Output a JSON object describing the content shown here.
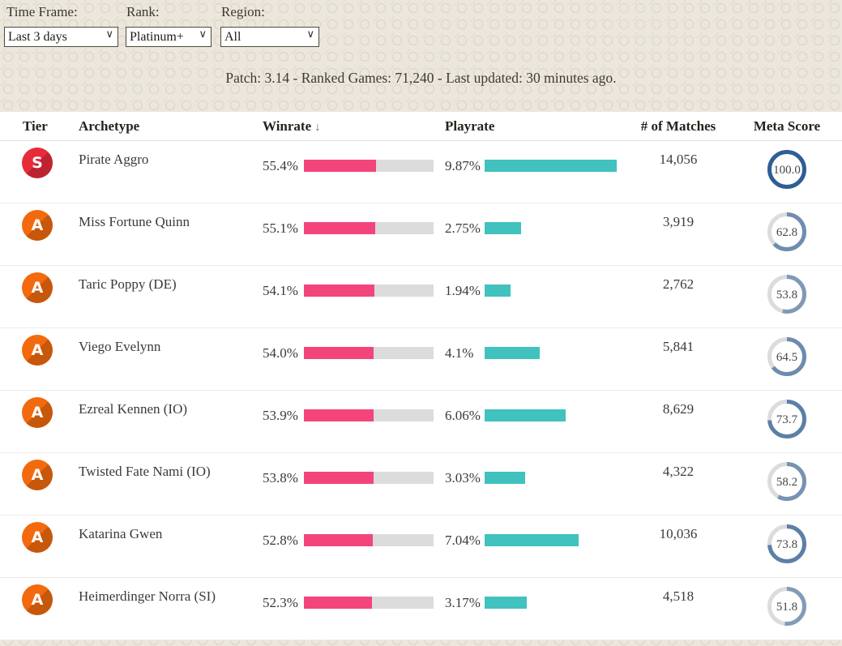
{
  "filters": [
    {
      "label": "Time Frame:",
      "value": "Last 3 days"
    },
    {
      "label": "Rank:",
      "value": "Platinum+"
    },
    {
      "label": "Region:",
      "value": "All"
    }
  ],
  "chevron_icon": "∨",
  "status_line": "Patch: 3.14 - Ranked Games: 71,240 - Last updated: 30 minutes ago.",
  "table": {
    "columns": [
      "Tier",
      "Archetype",
      "Winrate",
      "Playrate",
      "# of Matches",
      "Meta Score"
    ],
    "sort_icon": "↓",
    "rows": [
      {
        "tier": "S",
        "archetype": "Pirate Aggro",
        "winrate_label": "55.4%",
        "winrate": 55.4,
        "playrate_label": "9.87%",
        "playrate": 9.87,
        "matches": "14,056",
        "meta_label": "100.0",
        "meta": 100.0
      },
      {
        "tier": "A",
        "archetype": "Miss Fortune Quinn",
        "winrate_label": "55.1%",
        "winrate": 55.1,
        "playrate_label": "2.75%",
        "playrate": 2.75,
        "matches": "3,919",
        "meta_label": "62.8",
        "meta": 62.8
      },
      {
        "tier": "A",
        "archetype": "Taric Poppy (DE)",
        "winrate_label": "54.1%",
        "winrate": 54.1,
        "playrate_label": "1.94%",
        "playrate": 1.94,
        "matches": "2,762",
        "meta_label": "53.8",
        "meta": 53.8
      },
      {
        "tier": "A",
        "archetype": "Viego Evelynn",
        "winrate_label": "54.0%",
        "winrate": 54.0,
        "playrate_label": "4.1%",
        "playrate": 4.1,
        "matches": "5,841",
        "meta_label": "64.5",
        "meta": 64.5
      },
      {
        "tier": "A",
        "archetype": "Ezreal Kennen (IO)",
        "winrate_label": "53.9%",
        "winrate": 53.9,
        "playrate_label": "6.06%",
        "playrate": 6.06,
        "matches": "8,629",
        "meta_label": "73.7",
        "meta": 73.7
      },
      {
        "tier": "A",
        "archetype": "Twisted Fate Nami (IO)",
        "winrate_label": "53.8%",
        "winrate": 53.8,
        "playrate_label": "3.03%",
        "playrate": 3.03,
        "matches": "4,322",
        "meta_label": "58.2",
        "meta": 58.2
      },
      {
        "tier": "A",
        "archetype": "Katarina Gwen",
        "winrate_label": "52.8%",
        "winrate": 52.8,
        "playrate_label": "7.04%",
        "playrate": 7.04,
        "matches": "10,036",
        "meta_label": "73.8",
        "meta": 73.8
      },
      {
        "tier": "A",
        "archetype": "Heimerdinger Norra (SI)",
        "winrate_label": "52.3%",
        "winrate": 52.3,
        "playrate_label": "3.17%",
        "playrate": 3.17,
        "matches": "4,518",
        "meta_label": "51.8",
        "meta": 51.8
      }
    ]
  },
  "colors": {
    "winrate_bar": "#f3457c",
    "winrate_track": "#dcdcdc",
    "playrate_bar": "#41c2be",
    "meta_ring": "#2e5e94",
    "meta_track": "#dcdcdc",
    "tier_s": "#e72b3b",
    "tier_a": "#f26a0d"
  }
}
